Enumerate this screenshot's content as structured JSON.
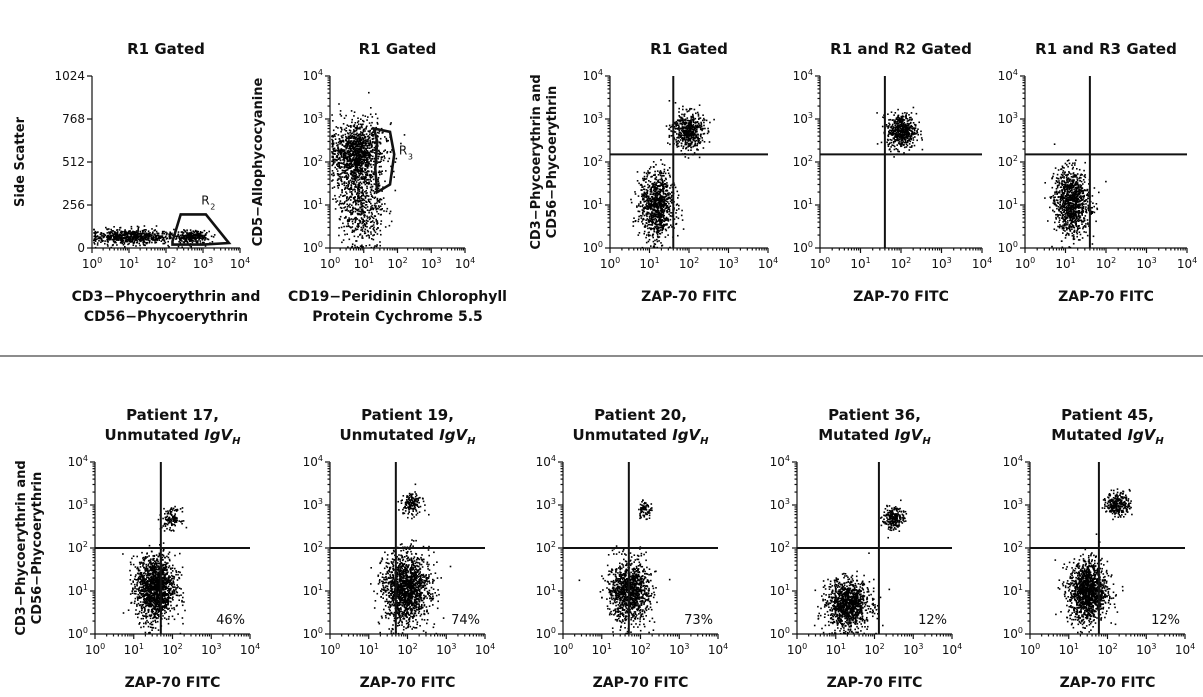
{
  "chart_data": [
    {
      "type": "scatter",
      "id": "a1",
      "title": [
        "R1 Gated"
      ],
      "xlabel": [
        "CD3−Phycoerythrin and",
        "CD56−Phycoerythrin"
      ],
      "ylabel": [
        "Side Scatter"
      ],
      "xscale": "log",
      "xlim": [
        1,
        10000
      ],
      "xticks": [
        "10^0",
        "10^1",
        "10^2",
        "10^3",
        "10^4"
      ],
      "yscale": "linear",
      "ylim": [
        0,
        1024
      ],
      "yticks": [
        "0",
        "256",
        "512",
        "768",
        "1024"
      ],
      "clusters": [
        {
          "x": 12,
          "y": 70,
          "sdx": 0.55,
          "sdy": 22,
          "n": 650
        },
        {
          "x": 500,
          "y": 70,
          "sdx": 0.25,
          "sdy": 18,
          "n": 260
        }
      ],
      "gates": [
        {
          "label": "R",
          "sub": "2",
          "poly": [
            [
              150,
              40
            ],
            [
              250,
              200
            ],
            [
              1200,
              200
            ],
            [
              5000,
              30
            ],
            [
              1000,
              20
            ],
            [
              150,
              20
            ]
          ],
          "label_at": [
            900,
            260
          ]
        }
      ],
      "quadrant": null,
      "percent": ""
    },
    {
      "type": "scatter",
      "id": "a2",
      "title": [
        "R1 Gated"
      ],
      "xlabel": [
        "CD19−Peridinin Chlorophyll",
        "Protein Cychrome 5.5"
      ],
      "ylabel": [
        "CD5−Allophycocyanine"
      ],
      "xscale": "log",
      "xlim": [
        1,
        10000
      ],
      "xticks": [
        "10^0",
        "10^1",
        "10^2",
        "10^3",
        "10^4"
      ],
      "yscale": "log",
      "ylim": [
        1,
        10000
      ],
      "yticks": [
        "10^0",
        "10^1",
        "10^2",
        "10^3",
        "10^4"
      ],
      "clusters": [
        {
          "x": 6,
          "y": 150,
          "sdx": 0.4,
          "sdy": 0.38,
          "n": 1300
        },
        {
          "x": 8,
          "y": 8,
          "sdx": 0.35,
          "sdy": 0.45,
          "n": 500
        }
      ],
      "gates": [
        {
          "label": "R",
          "sub": "3",
          "poly": [
            [
              20,
              600
            ],
            [
              60,
              500
            ],
            [
              80,
              150
            ],
            [
              60,
              30
            ],
            [
              25,
              20
            ],
            [
              22,
              70
            ],
            [
              25,
              300
            ]
          ],
          "label_at": [
            110,
            150
          ]
        }
      ],
      "quadrant": null,
      "percent": ""
    },
    {
      "type": "scatter",
      "id": "a3",
      "title": [
        "R1 Gated"
      ],
      "xlabel": [
        "ZAP-70 FITC"
      ],
      "ylabel": [
        "CD3−Phycoerythrin and",
        "CD56−Phycoerythrin"
      ],
      "xscale": "log",
      "xlim": [
        1,
        10000
      ],
      "xticks": [
        "10^0",
        "10^1",
        "10^2",
        "10^3",
        "10^4"
      ],
      "yscale": "log",
      "ylim": [
        1,
        10000
      ],
      "yticks": [
        "10^0",
        "10^1",
        "10^2",
        "10^3",
        "10^4"
      ],
      "clusters": [
        {
          "x": 90,
          "y": 550,
          "sdx": 0.2,
          "sdy": 0.22,
          "n": 500
        },
        {
          "x": 15,
          "y": 10,
          "sdx": 0.22,
          "sdy": 0.4,
          "n": 900
        }
      ],
      "gates": [],
      "quadrant": {
        "x": 40,
        "y": 150
      },
      "percent": ""
    },
    {
      "type": "scatter",
      "id": "a4",
      "title": [
        "R1 and R2 Gated"
      ],
      "xlabel": [
        "ZAP-70 FITC"
      ],
      "ylabel": [],
      "xscale": "log",
      "xlim": [
        1,
        10000
      ],
      "xticks": [
        "10^0",
        "10^1",
        "10^2",
        "10^3",
        "10^4"
      ],
      "yscale": "log",
      "ylim": [
        1,
        10000
      ],
      "yticks": [
        "10^0",
        "10^1",
        "10^2",
        "10^3",
        "10^4"
      ],
      "clusters": [
        {
          "x": 100,
          "y": 550,
          "sdx": 0.18,
          "sdy": 0.2,
          "n": 520
        }
      ],
      "gates": [],
      "quadrant": {
        "x": 40,
        "y": 150
      },
      "percent": ""
    },
    {
      "type": "scatter",
      "id": "a5",
      "title": [
        "R1 and R3 Gated"
      ],
      "xlabel": [
        "ZAP-70 FITC"
      ],
      "ylabel": [],
      "xscale": "log",
      "xlim": [
        1,
        10000
      ],
      "xticks": [
        "10^0",
        "10^1",
        "10^2",
        "10^3",
        "10^4"
      ],
      "yscale": "log",
      "ylim": [
        1,
        10000
      ],
      "yticks": [
        "10^0",
        "10^1",
        "10^2",
        "10^3",
        "10^4"
      ],
      "clusters": [
        {
          "x": 14,
          "y": 12,
          "sdx": 0.22,
          "sdy": 0.38,
          "n": 1000
        }
      ],
      "gates": [],
      "quadrant": {
        "x": 40,
        "y": 150
      },
      "percent": ""
    },
    {
      "type": "scatter",
      "id": "b1",
      "title": [
        "Patient 17,",
        "Unmutated IgV_H"
      ],
      "xlabel": [
        "ZAP-70 FITC"
      ],
      "ylabel": [
        "CD3−Phycoerythrin and",
        "CD56−Phycoerythrin"
      ],
      "xscale": "log",
      "xlim": [
        1,
        10000
      ],
      "xticks": [
        "10^0",
        "10^1",
        "10^2",
        "10^3",
        "10^4"
      ],
      "yscale": "log",
      "ylim": [
        1,
        10000
      ],
      "yticks": [
        "10^0",
        "10^1",
        "10^2",
        "10^3",
        "10^4"
      ],
      "clusters": [
        {
          "x": 90,
          "y": 500,
          "sdx": 0.12,
          "sdy": 0.12,
          "n": 120
        },
        {
          "x": 35,
          "y": 12,
          "sdx": 0.25,
          "sdy": 0.38,
          "n": 1500
        }
      ],
      "gates": [],
      "quadrant": {
        "x": 50,
        "y": 100
      },
      "percent": "46%"
    },
    {
      "type": "scatter",
      "id": "b2",
      "title": [
        "Patient 19,",
        "Unmutated IgV_H"
      ],
      "xlabel": [
        "ZAP-70 FITC"
      ],
      "ylabel": [],
      "xscale": "log",
      "xlim": [
        1,
        10000
      ],
      "xticks": [
        "10^0",
        "10^1",
        "10^2",
        "10^3",
        "10^4"
      ],
      "yscale": "log",
      "ylim": [
        1,
        10000
      ],
      "yticks": [
        "10^0",
        "10^1",
        "10^2",
        "10^3",
        "10^4"
      ],
      "clusters": [
        {
          "x": 120,
          "y": 1100,
          "sdx": 0.12,
          "sdy": 0.12,
          "n": 150
        },
        {
          "x": 90,
          "y": 12,
          "sdx": 0.3,
          "sdy": 0.4,
          "n": 1500
        }
      ],
      "gates": [],
      "quadrant": {
        "x": 50,
        "y": 100
      },
      "percent": "74%"
    },
    {
      "type": "scatter",
      "id": "b3",
      "title": [
        "Patient 20,",
        "Unmutated IgV_H"
      ],
      "xlabel": [
        "ZAP-70 FITC"
      ],
      "ylabel": [],
      "xscale": "log",
      "xlim": [
        1,
        10000
      ],
      "xticks": [
        "10^0",
        "10^1",
        "10^2",
        "10^3",
        "10^4"
      ],
      "yscale": "log",
      "ylim": [
        1,
        10000
      ],
      "yticks": [
        "10^0",
        "10^1",
        "10^2",
        "10^3",
        "10^4"
      ],
      "clusters": [
        {
          "x": 120,
          "y": 800,
          "sdx": 0.1,
          "sdy": 0.1,
          "n": 80
        },
        {
          "x": 50,
          "y": 10,
          "sdx": 0.27,
          "sdy": 0.35,
          "n": 1100
        }
      ],
      "gates": [],
      "quadrant": {
        "x": 50,
        "y": 100
      },
      "percent": "73%"
    },
    {
      "type": "scatter",
      "id": "b4",
      "title": [
        "Patient 36,",
        "Mutated IgV_H"
      ],
      "xlabel": [
        "ZAP-70 FITC"
      ],
      "ylabel": [],
      "xscale": "log",
      "xlim": [
        1,
        10000
      ],
      "xticks": [
        "10^0",
        "10^1",
        "10^2",
        "10^3",
        "10^4"
      ],
      "yscale": "log",
      "ylim": [
        1,
        10000
      ],
      "yticks": [
        "10^0",
        "10^1",
        "10^2",
        "10^3",
        "10^4"
      ],
      "clusters": [
        {
          "x": 300,
          "y": 500,
          "sdx": 0.13,
          "sdy": 0.13,
          "n": 220
        },
        {
          "x": 20,
          "y": 5,
          "sdx": 0.28,
          "sdy": 0.28,
          "n": 1100
        }
      ],
      "gates": [],
      "quadrant": {
        "x": 130,
        "y": 100
      },
      "percent": "12%"
    },
    {
      "type": "scatter",
      "id": "b5",
      "title": [
        "Patient 45,",
        "Mutated IgV_H"
      ],
      "xlabel": [
        "ZAP-70 FITC"
      ],
      "ylabel": [],
      "xscale": "log",
      "xlim": [
        1,
        10000
      ],
      "xticks": [
        "10^0",
        "10^1",
        "10^2",
        "10^3",
        "10^4"
      ],
      "yscale": "log",
      "ylim": [
        1,
        10000
      ],
      "yticks": [
        "10^0",
        "10^1",
        "10^2",
        "10^3",
        "10^4"
      ],
      "clusters": [
        {
          "x": 180,
          "y": 1100,
          "sdx": 0.15,
          "sdy": 0.14,
          "n": 280
        },
        {
          "x": 30,
          "y": 10,
          "sdx": 0.25,
          "sdy": 0.35,
          "n": 1300
        }
      ],
      "gates": [],
      "quadrant": {
        "x": 60,
        "y": 100
      },
      "percent": "12%"
    }
  ]
}
